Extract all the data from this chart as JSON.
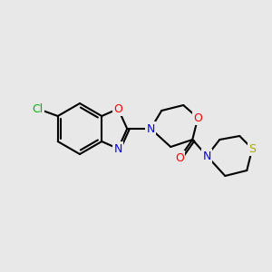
{
  "bg_color": "#e8e8e8",
  "bond_color": "#000000",
  "atom_colors": {
    "Cl": "#00bb00",
    "N": "#0000ff",
    "O": "#ff0000",
    "S": "#aaaa00",
    "C": "#000000"
  },
  "line_width": 1.5,
  "font_size": 9
}
